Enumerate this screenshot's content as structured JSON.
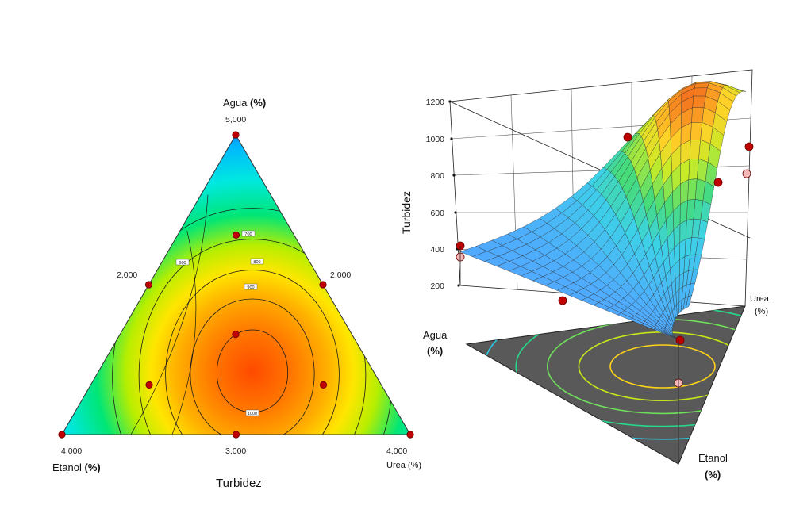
{
  "chart_data": [
    {
      "type": "heatmap",
      "subtype": "ternary-contour",
      "title": "Turbidez",
      "vertices": {
        "top": {
          "label": "Agua",
          "unit": "(%)",
          "value": "5,000"
        },
        "left": {
          "label": "Etanol",
          "unit": "(%)",
          "value": "4,000"
        },
        "right": {
          "label": "Urea",
          "unit": "(%)",
          "value": "4,000"
        }
      },
      "edge_ticks": {
        "left": "2,000",
        "right": "2,000",
        "bottom": "3,000"
      },
      "contour_levels": [
        600,
        700,
        800,
        900,
        1000
      ],
      "contour_labels": [
        "600",
        "700",
        "800",
        "900",
        "1000"
      ],
      "design_points": [
        {
          "a": 1.0,
          "b": 0.0,
          "c": 0.0
        },
        {
          "a": 0.0,
          "b": 1.0,
          "c": 0.0
        },
        {
          "a": 0.0,
          "b": 0.0,
          "c": 1.0
        },
        {
          "a": 0.5,
          "b": 0.5,
          "c": 0.0
        },
        {
          "a": 0.5,
          "b": 0.0,
          "c": 0.5
        },
        {
          "a": 0.0,
          "b": 0.5,
          "c": 0.5
        },
        {
          "a": 0.667,
          "b": 0.167,
          "c": 0.167
        },
        {
          "a": 0.167,
          "b": 0.667,
          "c": 0.167
        },
        {
          "a": 0.167,
          "b": 0.167,
          "c": 0.667
        },
        {
          "a": 0.333,
          "b": 0.333,
          "c": 0.333
        }
      ],
      "color_scale": [
        "#1a4dff",
        "#00c8ff",
        "#00e676",
        "#b8ee00",
        "#ffe600",
        "#ff9800",
        "#ff4a00"
      ],
      "point_color": "#c00000"
    },
    {
      "type": "area",
      "subtype": "3d-response-surface",
      "zlabel": "Turbidez",
      "zticks": [
        "200",
        "400",
        "600",
        "800",
        "1000",
        "1200"
      ],
      "zlim": [
        200,
        1200
      ],
      "axes": {
        "agua": {
          "label": "Agua",
          "unit": "(%)"
        },
        "etanol": {
          "label": "Etanol",
          "unit": "(%)"
        },
        "urea": {
          "label": "Urea",
          "unit": "(%)"
        }
      },
      "floor_color": "#595959",
      "design_points_above": [
        {
          "label": "Agua corner",
          "z": 410
        },
        {
          "label": "Etanol corner",
          "z": 430
        },
        {
          "label": "Urea corner",
          "z": 960
        }
      ]
    }
  ]
}
